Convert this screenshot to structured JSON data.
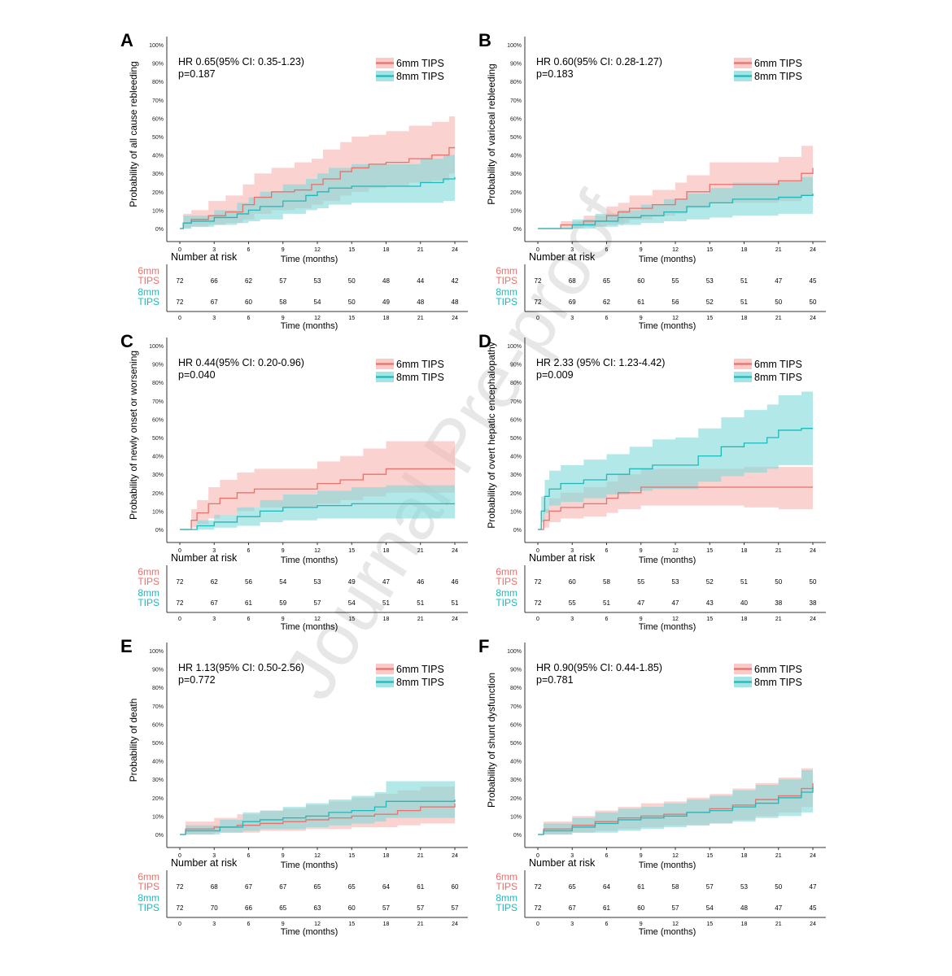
{
  "watermark": "Journal Pre-proof",
  "colors": {
    "six": "#e8716b",
    "eight": "#1fb8bb",
    "sixFill": "#f7b4b0",
    "eightFill": "#7fd8d8"
  },
  "x_ticks": [
    "0",
    "3",
    "6",
    "9",
    "12",
    "15",
    "18",
    "21",
    "24"
  ],
  "y_ticks": [
    "0%",
    "10%",
    "20%",
    "30%",
    "40%",
    "50%",
    "60%",
    "70%",
    "80%",
    "90%",
    "100%"
  ],
  "x_label": "Time (months)",
  "risk_title": "Number at risk",
  "legend": [
    "6mm TIPS",
    "8mm TIPS"
  ],
  "group_labels": [
    [
      "6mm",
      "TIPS"
    ],
    [
      "8mm",
      "TIPS"
    ]
  ],
  "chart_data": [
    {
      "type": "line",
      "letter": "A",
      "ylabel": "Probability of all cause rebleeding",
      "hr": "HR 0.65(95% CI: 0.35-1.23)",
      "p": "p=0.187",
      "xlim": [
        0,
        24
      ],
      "ylim": [
        0,
        1
      ],
      "series": [
        {
          "name": "6mm TIPS",
          "x": [
            0,
            0.3,
            1,
            2.5,
            4,
            5.5,
            6.5,
            8,
            10,
            11.5,
            12.5,
            14,
            15,
            16.5,
            18,
            20,
            22,
            23.5,
            24
          ],
          "y": [
            0,
            0.03,
            0.05,
            0.07,
            0.09,
            0.13,
            0.17,
            0.2,
            0.21,
            0.24,
            0.27,
            0.31,
            0.33,
            0.35,
            0.36,
            0.38,
            0.4,
            0.44,
            0.44
          ],
          "upper": [
            0,
            0.08,
            0.1,
            0.15,
            0.18,
            0.24,
            0.3,
            0.33,
            0.36,
            0.38,
            0.43,
            0.47,
            0.5,
            0.51,
            0.53,
            0.56,
            0.58,
            0.61,
            0.61
          ],
          "lower": [
            0,
            0,
            0.01,
            0.02,
            0.03,
            0.05,
            0.08,
            0.1,
            0.11,
            0.13,
            0.15,
            0.18,
            0.2,
            0.22,
            0.23,
            0.25,
            0.26,
            0.3,
            0.3
          ]
        },
        {
          "name": "8mm TIPS",
          "x": [
            0,
            0.3,
            1,
            3,
            5,
            6,
            7,
            9,
            11,
            12,
            13,
            15,
            17,
            19,
            21,
            23,
            24
          ],
          "y": [
            0,
            0.03,
            0.04,
            0.06,
            0.08,
            0.1,
            0.12,
            0.15,
            0.18,
            0.2,
            0.22,
            0.23,
            0.23,
            0.23,
            0.25,
            0.27,
            0.28
          ],
          "upper": [
            0,
            0.07,
            0.07,
            0.1,
            0.14,
            0.17,
            0.2,
            0.24,
            0.27,
            0.3,
            0.33,
            0.35,
            0.35,
            0.35,
            0.38,
            0.4,
            0.42
          ],
          "lower": [
            0,
            0,
            0.01,
            0.02,
            0.03,
            0.04,
            0.05,
            0.08,
            0.1,
            0.11,
            0.13,
            0.14,
            0.14,
            0.14,
            0.14,
            0.15,
            0.15
          ]
        }
      ],
      "risk": [
        [
          "72",
          "66",
          "62",
          "57",
          "53",
          "50",
          "48",
          "44",
          "42"
        ],
        [
          "72",
          "67",
          "60",
          "58",
          "54",
          "50",
          "49",
          "48",
          "48"
        ]
      ]
    },
    {
      "type": "line",
      "letter": "B",
      "ylabel": "Probability of variceal rebleeding",
      "hr": "HR 0.60(95% CI: 0.28-1.27)",
      "p": "p=0.183",
      "xlim": [
        0,
        24
      ],
      "ylim": [
        0,
        1
      ],
      "series": [
        {
          "name": "6mm TIPS",
          "x": [
            0,
            2,
            4,
            6,
            7,
            8,
            10,
            12,
            13,
            15,
            17,
            19,
            21,
            23,
            24
          ],
          "y": [
            0,
            0.02,
            0.04,
            0.07,
            0.09,
            0.11,
            0.13,
            0.16,
            0.2,
            0.24,
            0.24,
            0.24,
            0.26,
            0.3,
            0.33
          ],
          "upper": [
            0,
            0.04,
            0.07,
            0.12,
            0.14,
            0.18,
            0.21,
            0.25,
            0.29,
            0.36,
            0.36,
            0.36,
            0.39,
            0.45,
            0.47
          ],
          "lower": [
            0,
            0,
            0.01,
            0.02,
            0.03,
            0.05,
            0.07,
            0.08,
            0.11,
            0.14,
            0.14,
            0.14,
            0.15,
            0.18,
            0.21
          ]
        },
        {
          "name": "8mm TIPS",
          "x": [
            0,
            3,
            5,
            7,
            9,
            11,
            13,
            15,
            17,
            19,
            21,
            23,
            24
          ],
          "y": [
            0,
            0.02,
            0.04,
            0.06,
            0.07,
            0.09,
            0.12,
            0.14,
            0.16,
            0.16,
            0.17,
            0.18,
            0.19
          ],
          "upper": [
            0,
            0.05,
            0.08,
            0.1,
            0.13,
            0.16,
            0.19,
            0.22,
            0.25,
            0.25,
            0.26,
            0.28,
            0.3
          ],
          "lower": [
            0,
            0,
            0.01,
            0.02,
            0.03,
            0.04,
            0.05,
            0.06,
            0.07,
            0.07,
            0.08,
            0.08,
            0.08
          ]
        }
      ],
      "risk": [
        [
          "72",
          "68",
          "65",
          "60",
          "55",
          "53",
          "51",
          "47",
          "45"
        ],
        [
          "72",
          "69",
          "62",
          "61",
          "56",
          "52",
          "51",
          "50",
          "50"
        ]
      ]
    },
    {
      "type": "line",
      "letter": "C",
      "ylabel": "Probability of newly onset or worsening",
      "hr": "HR 0.44(95% CI: 0.20-0.96)",
      "p": "p=0.040",
      "xlim": [
        0,
        24
      ],
      "ylim": [
        0,
        1
      ],
      "series": [
        {
          "name": "6mm TIPS",
          "x": [
            0,
            1,
            1.5,
            2.5,
            3.5,
            5,
            6.5,
            9,
            12,
            14,
            16,
            18,
            21,
            24
          ],
          "y": [
            0,
            0.05,
            0.09,
            0.14,
            0.17,
            0.2,
            0.22,
            0.22,
            0.25,
            0.27,
            0.3,
            0.33,
            0.33,
            0.33
          ],
          "upper": [
            0,
            0.11,
            0.16,
            0.23,
            0.27,
            0.31,
            0.33,
            0.33,
            0.37,
            0.4,
            0.44,
            0.48,
            0.48,
            0.48
          ],
          "lower": [
            0,
            0.01,
            0.03,
            0.06,
            0.08,
            0.1,
            0.12,
            0.12,
            0.14,
            0.16,
            0.18,
            0.2,
            0.2,
            0.2
          ]
        },
        {
          "name": "8mm TIPS",
          "x": [
            0,
            1.5,
            3,
            5,
            7,
            9,
            12,
            15,
            18,
            21,
            24
          ],
          "y": [
            0,
            0.02,
            0.04,
            0.07,
            0.1,
            0.12,
            0.13,
            0.14,
            0.14,
            0.14,
            0.14
          ],
          "upper": [
            0,
            0.05,
            0.08,
            0.12,
            0.16,
            0.19,
            0.21,
            0.23,
            0.24,
            0.24,
            0.24
          ],
          "lower": [
            0,
            0,
            0.01,
            0.02,
            0.04,
            0.05,
            0.06,
            0.06,
            0.06,
            0.06,
            0.06
          ]
        }
      ],
      "risk": [
        [
          "72",
          "62",
          "56",
          "54",
          "53",
          "49",
          "47",
          "46",
          "46"
        ],
        [
          "72",
          "67",
          "61",
          "59",
          "57",
          "54",
          "51",
          "51",
          "51"
        ]
      ]
    },
    {
      "type": "line",
      "letter": "D",
      "ylabel": "Probability of overt hepatic encephalopathy",
      "hr": "HR 2.33 (95% CI: 1.23-4.42)",
      "p": "p=0.009",
      "xlim": [
        0,
        24
      ],
      "ylim": [
        0,
        1
      ],
      "series": [
        {
          "name": "6mm TIPS",
          "x": [
            0,
            0.5,
            1,
            2,
            4,
            6,
            7,
            9,
            12,
            15,
            18,
            21,
            24
          ],
          "y": [
            0,
            0.05,
            0.1,
            0.12,
            0.14,
            0.17,
            0.2,
            0.23,
            0.23,
            0.23,
            0.23,
            0.23,
            0.23
          ],
          "upper": [
            0,
            0.11,
            0.17,
            0.2,
            0.23,
            0.26,
            0.3,
            0.33,
            0.33,
            0.33,
            0.34,
            0.34,
            0.34
          ],
          "lower": [
            0,
            0.01,
            0.04,
            0.06,
            0.07,
            0.09,
            0.11,
            0.13,
            0.13,
            0.13,
            0.12,
            0.11,
            0.11
          ]
        },
        {
          "name": "8mm TIPS",
          "x": [
            0,
            0.3,
            0.6,
            1,
            2,
            4,
            6,
            8,
            10,
            12,
            14,
            16,
            18,
            20,
            21,
            23,
            24
          ],
          "y": [
            0,
            0.1,
            0.18,
            0.22,
            0.25,
            0.27,
            0.3,
            0.33,
            0.35,
            0.35,
            0.4,
            0.45,
            0.47,
            0.5,
            0.54,
            0.55,
            0.55
          ],
          "upper": [
            0,
            0.18,
            0.27,
            0.32,
            0.35,
            0.38,
            0.41,
            0.45,
            0.49,
            0.5,
            0.55,
            0.61,
            0.65,
            0.68,
            0.73,
            0.75,
            0.75
          ],
          "lower": [
            0,
            0.04,
            0.09,
            0.13,
            0.15,
            0.17,
            0.19,
            0.21,
            0.22,
            0.22,
            0.26,
            0.29,
            0.31,
            0.33,
            0.35,
            0.35,
            0.35
          ]
        }
      ],
      "risk": [
        [
          "72",
          "60",
          "58",
          "55",
          "53",
          "52",
          "51",
          "50",
          "50"
        ],
        [
          "72",
          "55",
          "51",
          "47",
          "47",
          "43",
          "40",
          "38",
          "38"
        ]
      ]
    },
    {
      "type": "line",
      "letter": "E",
      "ylabel": "Probability of death",
      "hr": "HR 1.13(95% CI: 0.50-2.56)",
      "p": "p=0.772",
      "xlim": [
        0,
        24
      ],
      "ylim": [
        0,
        1
      ],
      "series": [
        {
          "name": "6mm TIPS",
          "x": [
            0,
            0.5,
            3,
            5,
            7,
            9,
            11,
            13,
            15,
            17,
            19,
            21,
            24
          ],
          "y": [
            0,
            0.03,
            0.04,
            0.05,
            0.06,
            0.07,
            0.08,
            0.09,
            0.1,
            0.11,
            0.13,
            0.15,
            0.17
          ],
          "upper": [
            0,
            0.07,
            0.09,
            0.11,
            0.13,
            0.14,
            0.16,
            0.18,
            0.2,
            0.22,
            0.24,
            0.26,
            0.27
          ],
          "lower": [
            0,
            0,
            0.01,
            0.01,
            0.02,
            0.02,
            0.03,
            0.03,
            0.04,
            0.04,
            0.05,
            0.06,
            0.07
          ]
        },
        {
          "name": "8mm TIPS",
          "x": [
            0,
            0.5,
            3.5,
            5.5,
            7,
            9,
            11,
            13,
            15,
            17,
            18,
            21,
            24
          ],
          "y": [
            0,
            0.02,
            0.04,
            0.07,
            0.08,
            0.09,
            0.1,
            0.12,
            0.13,
            0.15,
            0.18,
            0.18,
            0.19
          ],
          "upper": [
            0,
            0.05,
            0.08,
            0.12,
            0.13,
            0.15,
            0.17,
            0.19,
            0.21,
            0.23,
            0.29,
            0.29,
            0.29
          ],
          "lower": [
            0,
            0,
            0.01,
            0.02,
            0.03,
            0.03,
            0.04,
            0.05,
            0.06,
            0.07,
            0.09,
            0.09,
            0.09
          ]
        }
      ],
      "risk": [
        [
          "72",
          "68",
          "67",
          "67",
          "65",
          "65",
          "64",
          "61",
          "60"
        ],
        [
          "72",
          "70",
          "66",
          "65",
          "63",
          "60",
          "57",
          "57",
          "57"
        ]
      ]
    },
    {
      "type": "line",
      "letter": "F",
      "ylabel": "Probability of shunt dysfunction",
      "hr": "HR 0.90(95% CI: 0.44-1.85)",
      "p": "p=0.781",
      "xlim": [
        0,
        24
      ],
      "ylim": [
        0,
        1
      ],
      "series": [
        {
          "name": "6mm TIPS",
          "x": [
            0,
            0.5,
            3,
            5,
            7,
            9,
            11,
            13,
            15,
            17,
            19,
            21,
            23,
            24
          ],
          "y": [
            0,
            0.03,
            0.05,
            0.07,
            0.09,
            0.1,
            0.11,
            0.12,
            0.14,
            0.16,
            0.19,
            0.21,
            0.25,
            0.28
          ],
          "upper": [
            0,
            0.07,
            0.1,
            0.13,
            0.15,
            0.17,
            0.18,
            0.2,
            0.22,
            0.25,
            0.28,
            0.31,
            0.36,
            0.4
          ],
          "lower": [
            0,
            0,
            0.01,
            0.02,
            0.03,
            0.04,
            0.05,
            0.05,
            0.06,
            0.08,
            0.1,
            0.12,
            0.15,
            0.17
          ]
        },
        {
          "name": "8mm TIPS",
          "x": [
            0,
            0.5,
            3,
            5,
            7,
            9,
            11,
            13,
            15,
            17,
            19,
            21,
            23,
            24
          ],
          "y": [
            0,
            0.02,
            0.04,
            0.06,
            0.08,
            0.09,
            0.1,
            0.12,
            0.13,
            0.15,
            0.17,
            0.2,
            0.23,
            0.26
          ],
          "upper": [
            0,
            0.06,
            0.09,
            0.12,
            0.14,
            0.15,
            0.17,
            0.19,
            0.21,
            0.24,
            0.27,
            0.3,
            0.35,
            0.38
          ],
          "lower": [
            0,
            0,
            0.01,
            0.01,
            0.02,
            0.03,
            0.04,
            0.05,
            0.06,
            0.07,
            0.09,
            0.1,
            0.12,
            0.14
          ]
        }
      ],
      "risk": [
        [
          "72",
          "65",
          "64",
          "61",
          "58",
          "57",
          "53",
          "50",
          "47"
        ],
        [
          "72",
          "67",
          "61",
          "60",
          "57",
          "54",
          "48",
          "47",
          "45"
        ]
      ]
    }
  ]
}
